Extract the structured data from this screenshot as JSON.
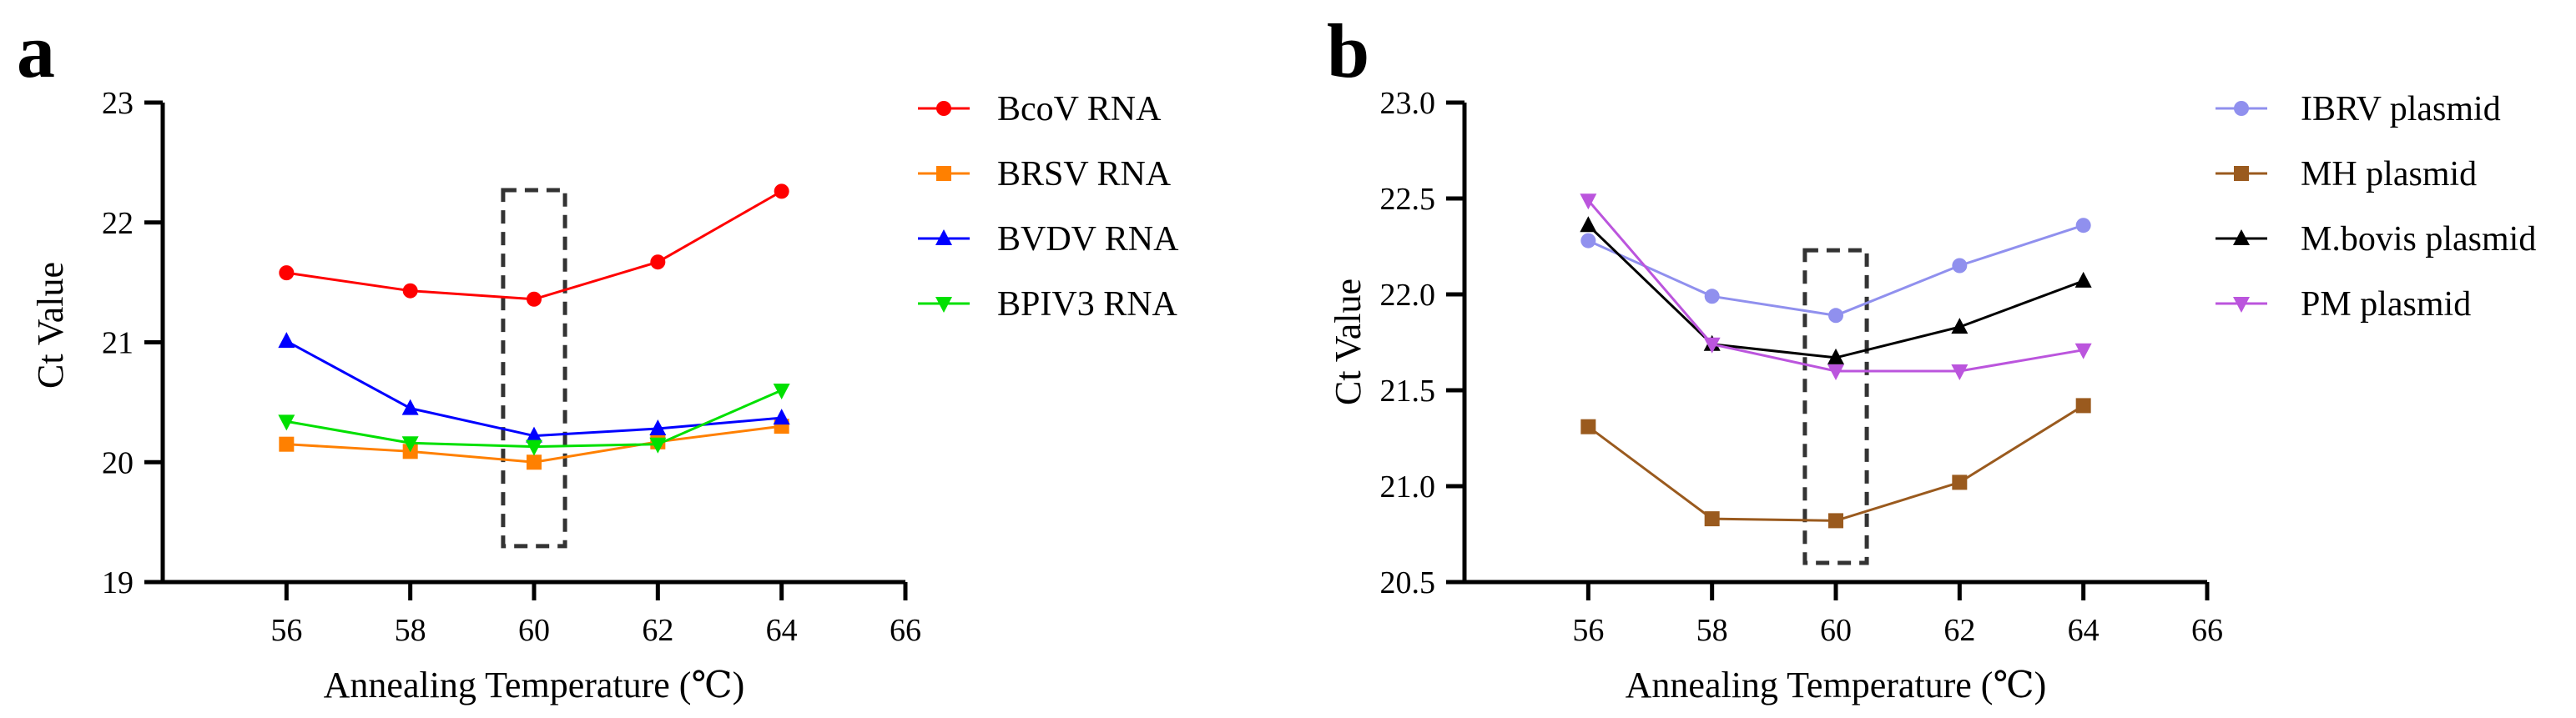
{
  "chart_data": [
    {
      "panel_label": "a",
      "type": "line",
      "xlabel": "Annealing Temperature (℃)",
      "ylabel": "Ct Value",
      "xlim": [
        54,
        66
      ],
      "ylim": [
        19,
        23
      ],
      "xticks": [
        "56",
        "58",
        "60",
        "62",
        "64",
        "66"
      ],
      "yticks": [
        "19",
        "20",
        "21",
        "22",
        "23"
      ],
      "x": [
        56,
        58,
        60,
        62,
        64
      ],
      "highlight": {
        "x_range": [
          59.5,
          60.5
        ],
        "y_range": [
          19.3,
          22.27
        ],
        "style": "dashed-box"
      },
      "legend_position": "right",
      "series": [
        {
          "name": "BcoV RNA",
          "color": "#ff0000",
          "marker": "circle",
          "values": [
            21.58,
            21.43,
            21.36,
            21.67,
            22.26
          ]
        },
        {
          "name": "BRSV RNA",
          "color": "#ff8000",
          "marker": "square",
          "values": [
            20.15,
            20.09,
            20.0,
            20.17,
            20.3
          ]
        },
        {
          "name": "BVDV RNA",
          "color": "#0000ff",
          "marker": "triangle-up",
          "values": [
            21.01,
            20.45,
            20.22,
            20.28,
            20.37
          ]
        },
        {
          "name": "BPIV3 RNA",
          "color": "#00e000",
          "marker": "triangle-down",
          "values": [
            20.34,
            20.16,
            20.13,
            20.15,
            20.6
          ]
        }
      ]
    },
    {
      "panel_label": "b",
      "type": "line",
      "xlabel": "Annealing Temperature (℃)",
      "ylabel": "Ct Value",
      "xlim": [
        54,
        66
      ],
      "ylim": [
        20.5,
        23.0
      ],
      "xticks": [
        "56",
        "58",
        "60",
        "62",
        "64",
        "66"
      ],
      "yticks": [
        "20.5",
        "21.0",
        "21.5",
        "22.0",
        "22.5",
        "23.0"
      ],
      "x": [
        56,
        58,
        60,
        62,
        64
      ],
      "highlight": {
        "x_range": [
          59.5,
          60.5
        ],
        "y_range": [
          20.6,
          22.23
        ],
        "style": "dashed-box"
      },
      "legend_position": "right",
      "series": [
        {
          "name": "IBRV plasmid",
          "color": "#9090ee",
          "marker": "circle",
          "values": [
            22.28,
            21.99,
            21.89,
            22.15,
            22.36
          ]
        },
        {
          "name": "MH plasmid",
          "color": "#9a5a1e",
          "marker": "square",
          "values": [
            21.31,
            20.83,
            20.82,
            21.02,
            21.42
          ]
        },
        {
          "name": "M.bovis plasmid",
          "color": "#000000",
          "marker": "triangle-up",
          "values": [
            22.36,
            21.74,
            21.67,
            21.83,
            22.07
          ]
        },
        {
          "name": "PM plasmid",
          "color": "#bb55dd",
          "marker": "triangle-down",
          "values": [
            22.49,
            21.74,
            21.6,
            21.6,
            21.71
          ]
        }
      ]
    }
  ]
}
